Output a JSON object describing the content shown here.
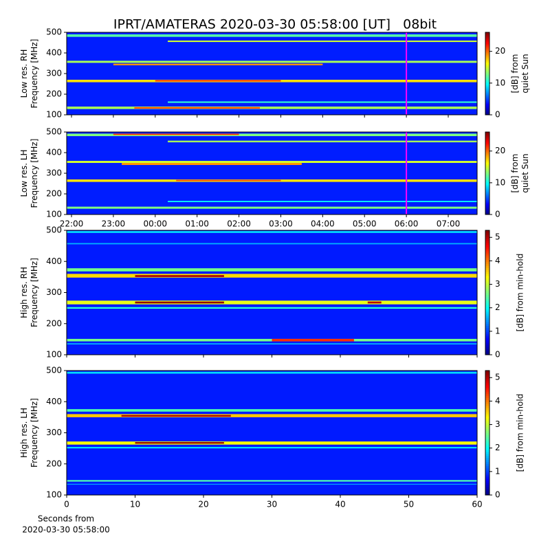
{
  "chart_data": {
    "type": "spectrogram",
    "title": "IPRT/AMATERAS 2020-03-30 05:58:00 [UT]   08bit",
    "colormap": "jet",
    "panels": [
      {
        "ylabel": [
          "Low res. RH",
          "Frequency [MHz]"
        ],
        "cbar_label": [
          "[dB] from",
          "quiet Sun"
        ],
        "ylim": [
          100,
          500
        ],
        "yticks": [
          100,
          200,
          300,
          400,
          500
        ],
        "xlim": [
          -0.115,
          9.69
        ],
        "xticks": [
          0,
          1,
          2,
          3,
          4,
          5,
          6,
          7,
          8,
          9
        ],
        "xtick_labels": false,
        "clim": [
          0,
          26
        ],
        "cticks": [
          0,
          10,
          20
        ],
        "marker_x": 8,
        "marker_color": "#ff00ff",
        "background_db": 4,
        "bands": [
          {
            "f": [
              478,
              490
            ],
            "db": 12
          },
          {
            "f": [
              453,
              460
            ],
            "db": 15,
            "t": [
              2.3,
              9.69
            ]
          },
          {
            "f": [
              352,
              362
            ],
            "db": 14
          },
          {
            "f": [
              340,
              348
            ],
            "db": 19,
            "t": [
              1.0,
              6.0
            ]
          },
          {
            "f": [
              258,
              270
            ],
            "db": 17
          },
          {
            "f": [
              262,
              268
            ],
            "db": 22,
            "t": [
              2.0,
              5.0
            ]
          },
          {
            "f": [
              158,
              165
            ],
            "db": 11,
            "t": [
              2.3,
              9.69
            ]
          },
          {
            "f": [
              128,
              140
            ],
            "db": 14
          },
          {
            "f": [
              130,
              137
            ],
            "db": 21,
            "t": [
              1.5,
              4.5
            ]
          }
        ]
      },
      {
        "ylabel": [
          "Low res. LH",
          "Frequency [MHz]"
        ],
        "cbar_label": [
          "[dB] from",
          "quiet Sun"
        ],
        "ylim": [
          100,
          500
        ],
        "yticks": [
          100,
          200,
          300,
          400,
          500
        ],
        "xlim": [
          -0.115,
          9.69
        ],
        "xticks": [
          {
            "value": 0,
            "label": "22:00"
          },
          {
            "value": 1,
            "label": "23:00"
          },
          {
            "value": 2,
            "label": "00:00"
          },
          {
            "value": 3,
            "label": "01:00"
          },
          {
            "value": 4,
            "label": "02:00"
          },
          {
            "value": 5,
            "label": "03:00"
          },
          {
            "value": 6,
            "label": "04:00"
          },
          {
            "value": 7,
            "label": "05:00"
          },
          {
            "value": 8,
            "label": "06:00"
          },
          {
            "value": 9,
            "label": "07:00"
          }
        ],
        "xtick_labels": true,
        "clim": [
          0,
          26
        ],
        "cticks": [
          0,
          10,
          20
        ],
        "marker_x": 8,
        "marker_color": "#ff00ff",
        "background_db": 4,
        "bands": [
          {
            "f": [
              480,
              492
            ],
            "db": 13
          },
          {
            "f": [
              485,
              492
            ],
            "db": 21,
            "t": [
              1.0,
              4.0
            ]
          },
          {
            "f": [
              450,
              458
            ],
            "db": 14,
            "t": [
              2.3,
              9.69
            ]
          },
          {
            "f": [
              350,
              360
            ],
            "db": 15
          },
          {
            "f": [
              340,
              350
            ],
            "db": 19,
            "t": [
              1.2,
              5.5
            ]
          },
          {
            "f": [
              258,
              270
            ],
            "db": 17
          },
          {
            "f": [
              262,
              268
            ],
            "db": 21,
            "t": [
              2.5,
              5.0
            ]
          },
          {
            "f": [
              160,
              166
            ],
            "db": 10,
            "t": [
              2.3,
              9.69
            ]
          },
          {
            "f": [
              128,
              138
            ],
            "db": 13
          }
        ]
      },
      {
        "ylabel": [
          "High res. RH",
          "Frequency [MHz]"
        ],
        "cbar_label": [
          "[dB] from min-hold"
        ],
        "ylim": [
          100,
          500
        ],
        "yticks": [
          100,
          200,
          300,
          400,
          500
        ],
        "xlim": [
          0,
          60
        ],
        "xticks": [
          0,
          10,
          20,
          30,
          40,
          50,
          60
        ],
        "xtick_labels": false,
        "clim": [
          0,
          5.3
        ],
        "cticks": [
          0,
          1,
          2,
          3,
          4,
          5
        ],
        "background_db": 0.8,
        "bands": [
          {
            "f": [
              492,
              497
            ],
            "db": 2
          },
          {
            "f": [
              455,
              459
            ],
            "db": 1.6
          },
          {
            "f": [
              368,
              378
            ],
            "db": 2.6
          },
          {
            "f": [
              348,
              360
            ],
            "db": 3.5
          },
          {
            "f": [
              350,
              356
            ],
            "db": 5.1,
            "t": [
              10,
              23
            ]
          },
          {
            "f": [
              262,
              274
            ],
            "db": 3.2
          },
          {
            "f": [
              265,
              271
            ],
            "db": 5.2,
            "t": [
              10,
              23
            ]
          },
          {
            "f": [
              265,
              271
            ],
            "db": 5.0,
            "t": [
              44,
              46
            ]
          },
          {
            "f": [
              248,
              253
            ],
            "db": 2.2
          },
          {
            "f": [
              143,
              151
            ],
            "db": 2.6
          },
          {
            "f": [
              143,
              151
            ],
            "db": 4.4,
            "t": [
              30,
              42
            ]
          },
          {
            "f": [
              133,
              137
            ],
            "db": 1.6
          }
        ]
      },
      {
        "ylabel": [
          "High res. LH",
          "Frequency [MHz]"
        ],
        "cbar_label": [
          "[dB] from min-hold"
        ],
        "ylim": [
          100,
          500
        ],
        "yticks": [
          100,
          200,
          300,
          400,
          500
        ],
        "xlim": [
          0,
          60
        ],
        "xticks": [
          0,
          10,
          20,
          30,
          40,
          50,
          60
        ],
        "xtick_labels": true,
        "xlabel": [
          "Seconds from",
          "2020-03-30 05:58:00"
        ],
        "clim": [
          0,
          5.3
        ],
        "cticks": [
          0,
          1,
          2,
          3,
          4,
          5
        ],
        "background_db": 0.8,
        "bands": [
          {
            "f": [
              490,
              496
            ],
            "db": 1.8
          },
          {
            "f": [
              368,
              376
            ],
            "db": 2.4
          },
          {
            "f": [
              350,
              360
            ],
            "db": 3.6
          },
          {
            "f": [
              352,
              357
            ],
            "db": 5.1,
            "t": [
              8,
              24
            ]
          },
          {
            "f": [
              262,
              272
            ],
            "db": 3.3
          },
          {
            "f": [
              265,
              270
            ],
            "db": 5.2,
            "t": [
              10,
              23
            ]
          },
          {
            "f": [
              250,
              254
            ],
            "db": 2
          },
          {
            "f": [
              143,
              148
            ],
            "db": 2.4
          },
          {
            "f": [
              133,
              136
            ],
            "db": 1.5
          }
        ]
      }
    ]
  }
}
